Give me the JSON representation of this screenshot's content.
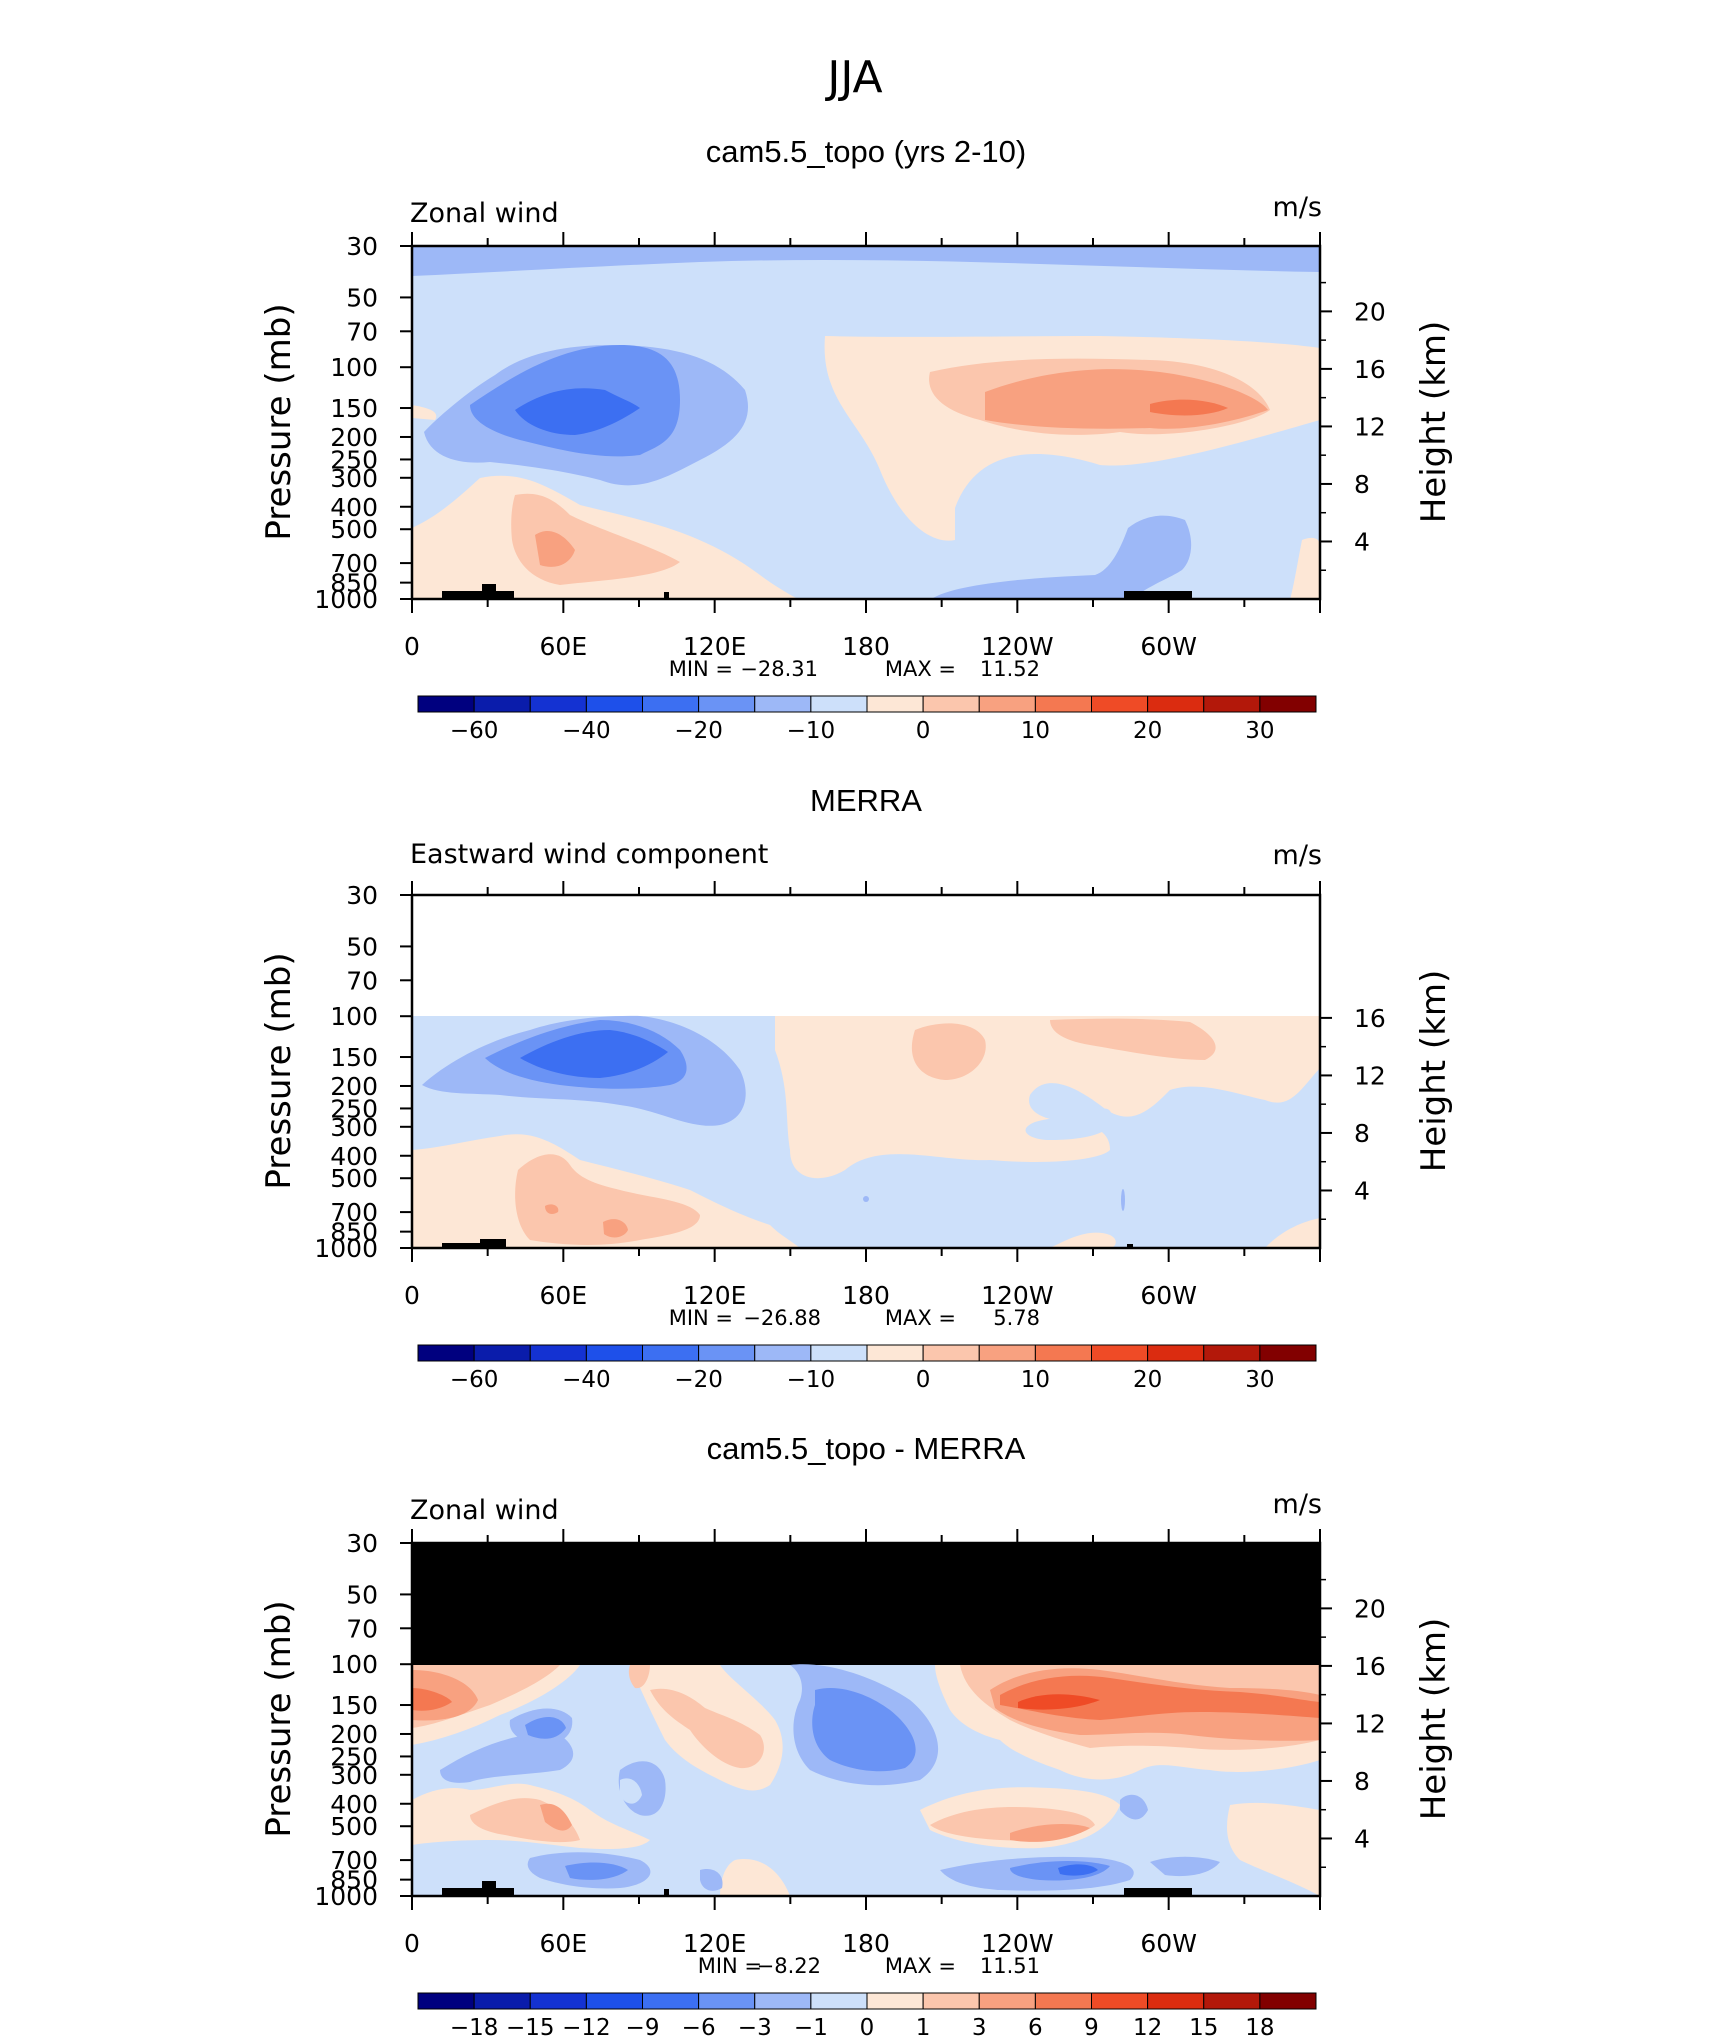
{
  "page_title": "JJA",
  "chart_data": [
    {
      "type": "heatmap",
      "title": "cam5.5_topo (yrs 2-10)",
      "left_label": "Zonal wind",
      "units": "m/s",
      "ylabel": "Pressure (mb)",
      "ylabel_right": "Height (km)",
      "x_ticks": [
        "0",
        "60E",
        "120E",
        "180",
        "120W",
        "60W"
      ],
      "y_ticks": [
        "30",
        "50",
        "70",
        "100",
        "150",
        "200",
        "250",
        "300",
        "400",
        "500",
        "700",
        "850",
        "1000"
      ],
      "right_ticks": [
        "20",
        "16",
        "12",
        "8",
        "4"
      ],
      "stats": {
        "min_label": "MIN =",
        "min": "-28.31",
        "max_label": "MAX =",
        "max": "11.52"
      },
      "colorbar": {
        "colors": [
          "#00007f",
          "#0a1cab",
          "#1432d2",
          "#1e50ea",
          "#3c6ff2",
          "#6a93f5",
          "#9db8f7",
          "#cde0fa",
          "#fde7d6",
          "#fbc6ad",
          "#f8a180",
          "#f47851",
          "#ef4b26",
          "#db2c10",
          "#b3180a",
          "#820000"
        ],
        "labels": [
          "-60",
          "-40",
          "-20",
          "-10",
          "0",
          "10",
          "20",
          "30"
        ]
      }
    },
    {
      "type": "heatmap",
      "title": "MERRA",
      "left_label": "Eastward wind component",
      "units": "m/s",
      "ylabel": "Pressure (mb)",
      "ylabel_right": "Height (km)",
      "x_ticks": [
        "0",
        "60E",
        "120E",
        "180",
        "120W",
        "60W"
      ],
      "y_ticks": [
        "30",
        "50",
        "70",
        "100",
        "150",
        "200",
        "250",
        "300",
        "400",
        "500",
        "700",
        "850",
        "1000"
      ],
      "right_ticks": [
        "16",
        "12",
        "8",
        "4"
      ],
      "stats": {
        "min_label": "MIN =",
        "min": "-26.88",
        "max_label": "MAX =",
        "max": "5.78"
      },
      "colorbar": {
        "colors": [
          "#00007f",
          "#0a1cab",
          "#1432d2",
          "#1e50ea",
          "#3c6ff2",
          "#6a93f5",
          "#9db8f7",
          "#cde0fa",
          "#fde7d6",
          "#fbc6ad",
          "#f8a180",
          "#f47851",
          "#ef4b26",
          "#db2c10",
          "#b3180a",
          "#820000"
        ],
        "labels": [
          "-60",
          "-40",
          "-20",
          "-10",
          "0",
          "10",
          "20",
          "30"
        ]
      }
    },
    {
      "type": "heatmap",
      "title": "cam5.5_topo - MERRA",
      "left_label": "Zonal wind",
      "units": "m/s",
      "ylabel": "Pressure (mb)",
      "ylabel_right": "Height (km)",
      "x_ticks": [
        "0",
        "60E",
        "120E",
        "180",
        "120W",
        "60W"
      ],
      "y_ticks": [
        "30",
        "50",
        "70",
        "100",
        "150",
        "200",
        "250",
        "300",
        "400",
        "500",
        "700",
        "850",
        "1000"
      ],
      "right_ticks": [
        "20",
        "16",
        "12",
        "8",
        "4"
      ],
      "stats": {
        "min_label": "MIN =",
        "min": "-8.22",
        "max_label": "MAX =",
        "max": "11.51"
      },
      "colorbar": {
        "colors": [
          "#00007f",
          "#0a1cab",
          "#1432d2",
          "#1e50ea",
          "#3c6ff2",
          "#6a93f5",
          "#9db8f7",
          "#cde0fa",
          "#fde7d6",
          "#fbc6ad",
          "#f8a180",
          "#f47851",
          "#ef4b26",
          "#db2c10",
          "#b3180a",
          "#820000"
        ],
        "labels": [
          "-18",
          "-15",
          "-12",
          "-9",
          "-6",
          "-3",
          "-1",
          "0",
          "1",
          "3",
          "6",
          "9",
          "12",
          "15",
          "18"
        ]
      }
    }
  ]
}
